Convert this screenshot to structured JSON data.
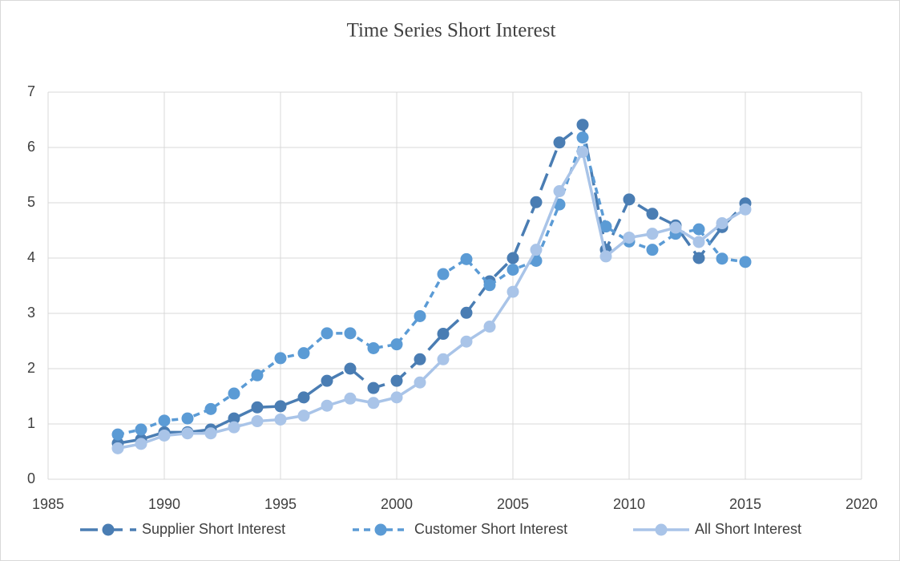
{
  "chart_data": {
    "type": "line",
    "title": "Time Series Short Interest",
    "x": [
      1988,
      1989,
      1990,
      1991,
      1992,
      1993,
      1994,
      1995,
      1996,
      1997,
      1998,
      1999,
      2000,
      2001,
      2002,
      2003,
      2004,
      2005,
      2006,
      2007,
      2008,
      2009,
      2010,
      2011,
      2012,
      2013,
      2014,
      2015
    ],
    "series": [
      {
        "name": "Supplier Short Interest",
        "color": "#4a7db3",
        "dash": "long",
        "values": [
          0.65,
          0.72,
          0.85,
          0.85,
          0.9,
          1.1,
          1.3,
          1.32,
          1.48,
          1.78,
          2.0,
          1.65,
          1.78,
          2.17,
          2.63,
          3.01,
          3.58,
          4.0,
          5.01,
          6.09,
          6.41,
          4.15,
          5.06,
          4.8,
          4.59,
          4.0,
          4.56,
          4.99
        ]
      },
      {
        "name": "Customer Short Interest",
        "color": "#5b9bd5",
        "dash": "short",
        "values": [
          0.81,
          0.9,
          1.06,
          1.1,
          1.27,
          1.55,
          1.88,
          2.19,
          2.28,
          2.64,
          2.64,
          2.37,
          2.44,
          2.95,
          3.71,
          3.98,
          3.51,
          3.79,
          3.95,
          4.97,
          6.18,
          4.57,
          4.3,
          4.15,
          4.44,
          4.52,
          3.99,
          3.93
        ]
      },
      {
        "name": "All Short Interest",
        "color": "#a9c4e8",
        "dash": "solid",
        "values": [
          0.56,
          0.64,
          0.79,
          0.83,
          0.83,
          0.94,
          1.05,
          1.08,
          1.15,
          1.33,
          1.46,
          1.38,
          1.48,
          1.75,
          2.17,
          2.49,
          2.76,
          3.39,
          4.15,
          5.21,
          5.92,
          4.03,
          4.37,
          4.44,
          4.55,
          4.29,
          4.63,
          4.88
        ]
      }
    ],
    "xlim": [
      1985,
      2020
    ],
    "xticks": [
      1985,
      1990,
      1995,
      2000,
      2005,
      2010,
      2015,
      2020
    ],
    "ylim": [
      0,
      7
    ],
    "yticks": [
      0,
      1,
      2,
      3,
      4,
      5,
      6,
      7
    ],
    "grid": true,
    "legend": "bottom"
  }
}
